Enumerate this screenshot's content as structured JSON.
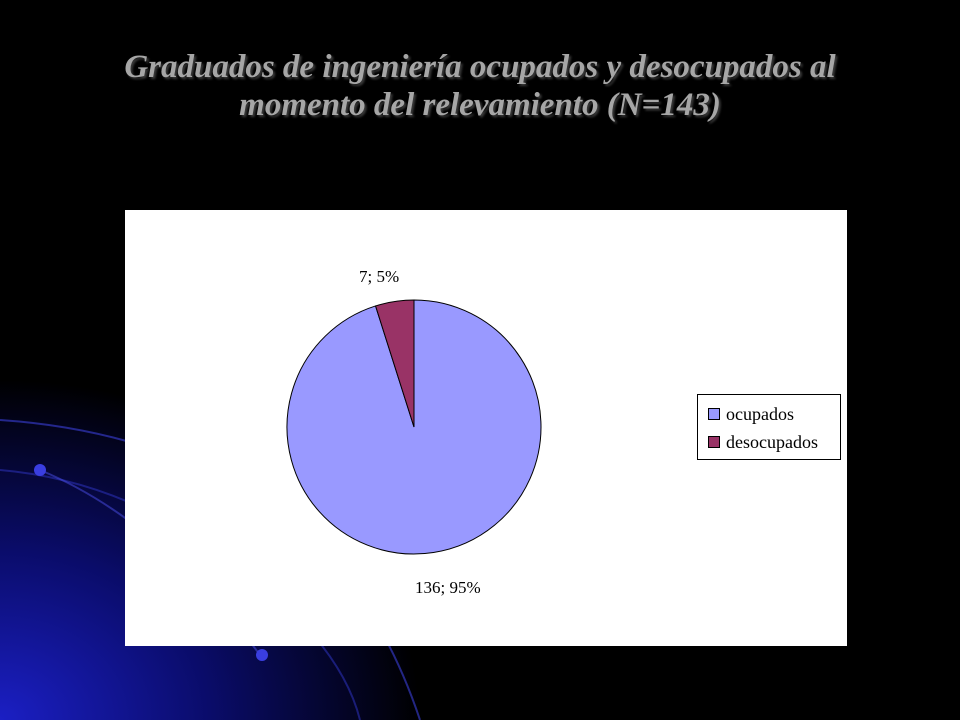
{
  "slide": {
    "title_line1": "Graduados de ingeniería ocupados y desocupados al",
    "title_line2": "momento del relevamiento  (N=143)"
  },
  "chart_data": {
    "type": "pie",
    "title": "Graduados de ingeniería ocupados y desocupados al momento del relevamiento (N=143)",
    "total": 143,
    "categories": [
      "ocupados",
      "desocupados"
    ],
    "values": [
      136,
      7
    ],
    "percentages": [
      95,
      5
    ],
    "data_labels": [
      "136; 95%",
      "7; 5%"
    ],
    "colors": [
      "#9999ff",
      "#993366"
    ],
    "legend_position": "right"
  }
}
